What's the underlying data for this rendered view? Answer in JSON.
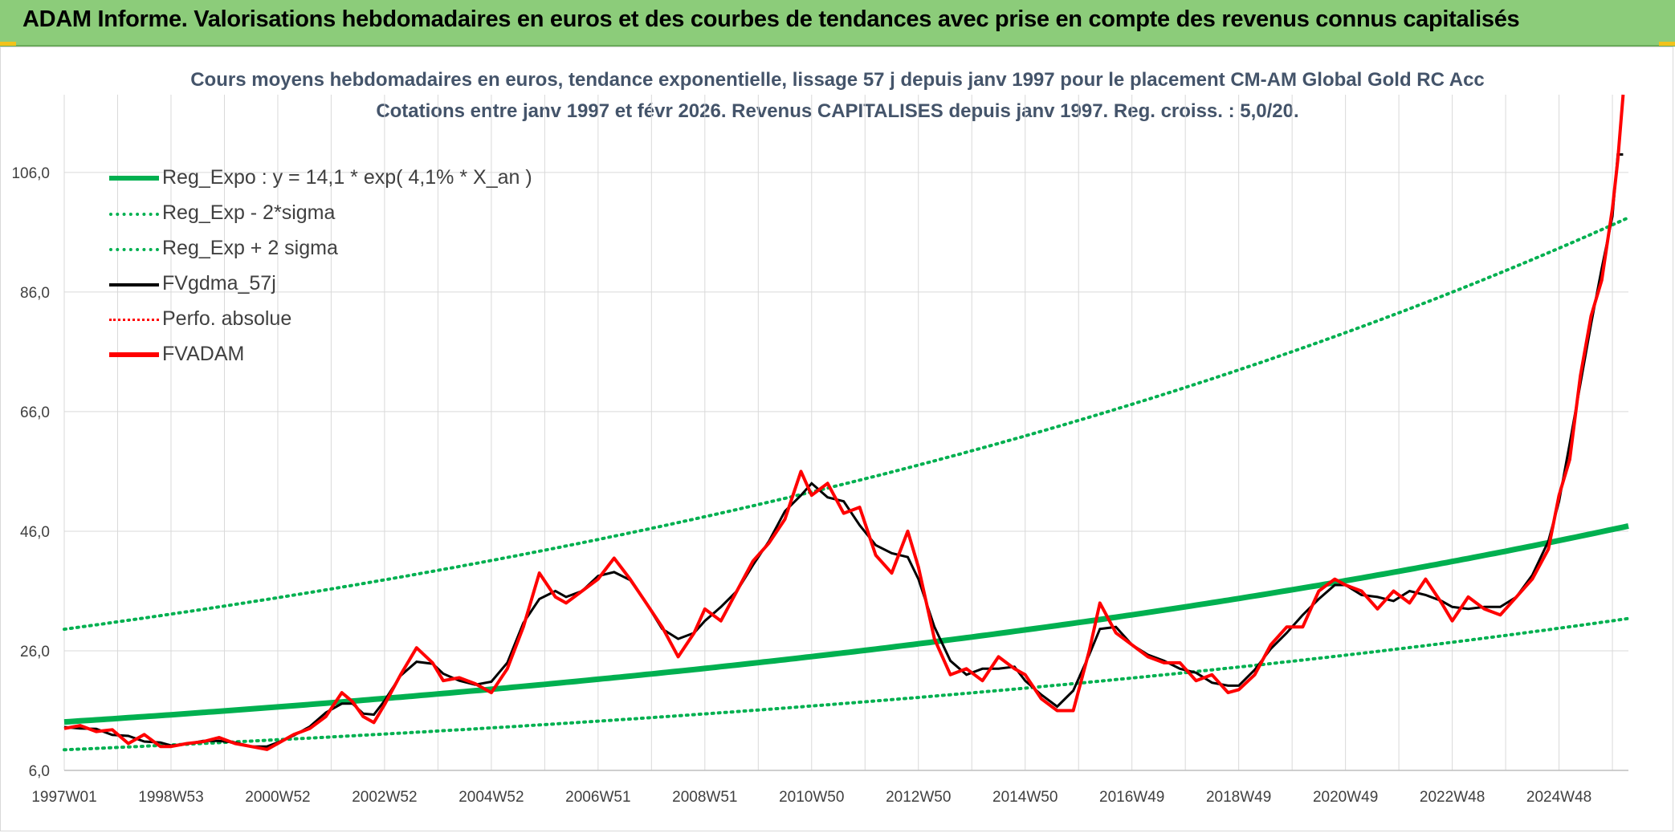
{
  "header": {
    "title": "ADAM Informe. Valorisations hebdomadaires en euros et des courbes de tendances avec prise en compte des revenus connus capitalisés"
  },
  "colors": {
    "banner": "#8ccc7a",
    "corner_accent": "#f2c21b",
    "title_text": "#44546a",
    "regression": "#00b050",
    "smoothed": "#000000",
    "price": "#ff0000",
    "grid": "#d9d9d9"
  },
  "chart_data": {
    "type": "line",
    "title": "Cours moyens hebdomadaires en euros, tendance exponentielle, lissage 57 j depuis janv 1997 pour le placement CM-AM Global Gold RC Acc",
    "subtitle": "Cotations entre janv 1997 et févr 2026. Revenus CAPITALISES depuis janv 1997. Reg. croiss. : 5,0/20.",
    "xlabel": "",
    "ylabel": "",
    "ylim": [
      6.0,
      119.0
    ],
    "xlim": [
      1997.0,
      2026.3
    ],
    "yticks": [
      "6,0",
      "26,0",
      "46,0",
      "66,0",
      "86,0",
      "106,0"
    ],
    "ytick_values": [
      6,
      26,
      46,
      66,
      86,
      106
    ],
    "xticks": [
      "1997W01",
      "1998W53",
      "2000W52",
      "2002W52",
      "2004W52",
      "2006W51",
      "2008W51",
      "2010W50",
      "2012W50",
      "2014W50",
      "2016W49",
      "2018W49",
      "2020W49",
      "2022W48",
      "2024W48"
    ],
    "xtick_years": [
      1997.0,
      1999.0,
      2001.0,
      2003.0,
      2005.0,
      2007.0,
      2009.0,
      2011.0,
      2013.0,
      2015.0,
      2017.0,
      2019.0,
      2021.0,
      2023.0,
      2025.0
    ],
    "grid": true,
    "legend_position": "top-left",
    "regression": {
      "a": 14.1,
      "rate": 0.041,
      "sigma_factor_minus": 0.67,
      "sigma_factor_plus": 2.1
    },
    "series": [
      {
        "name": "Reg_Expo : y = 14,1 * exp( 4,1% *  X_an )",
        "style": "solid-thick",
        "color": "#00b050"
      },
      {
        "name": "Reg_Exp - 2*sigma",
        "style": "dotted",
        "color": "#00b050"
      },
      {
        "name": "Reg_Exp + 2 sigma",
        "style": "dotted",
        "color": "#00b050"
      },
      {
        "name": "FVgdma_57j",
        "style": "solid",
        "color": "#000000"
      },
      {
        "name": "Perfo. absolue",
        "style": "dotted",
        "color": "#ff0000"
      },
      {
        "name": "FVADAM",
        "style": "solid-thick",
        "color": "#ff0000",
        "x": [
          1997.0,
          1997.3,
          1997.6,
          1997.9,
          1998.2,
          1998.5,
          1998.8,
          1999.0,
          1999.3,
          1999.6,
          1999.9,
          2000.2,
          2000.5,
          2000.8,
          2001.0,
          2001.3,
          2001.6,
          2001.9,
          2002.2,
          2002.4,
          2002.6,
          2002.8,
          2003.0,
          2003.3,
          2003.6,
          2003.9,
          2004.1,
          2004.4,
          2004.7,
          2005.0,
          2005.3,
          2005.6,
          2005.9,
          2006.2,
          2006.4,
          2006.7,
          2007.0,
          2007.3,
          2007.6,
          2007.9,
          2008.2,
          2008.5,
          2008.8,
          2009.0,
          2009.3,
          2009.6,
          2009.9,
          2010.2,
          2010.5,
          2010.8,
          2011.0,
          2011.3,
          2011.6,
          2011.9,
          2012.2,
          2012.5,
          2012.8,
          2013.0,
          2013.3,
          2013.6,
          2013.9,
          2014.2,
          2014.5,
          2014.8,
          2015.0,
          2015.3,
          2015.6,
          2015.9,
          2016.2,
          2016.4,
          2016.7,
          2017.0,
          2017.3,
          2017.6,
          2017.9,
          2018.2,
          2018.5,
          2018.8,
          2019.0,
          2019.3,
          2019.6,
          2019.9,
          2020.2,
          2020.5,
          2020.8,
          2021.0,
          2021.3,
          2021.6,
          2021.9,
          2022.2,
          2022.5,
          2022.8,
          2023.0,
          2023.3,
          2023.6,
          2023.9,
          2024.2,
          2024.5,
          2024.8,
          2025.0,
          2025.2,
          2025.4,
          2025.6,
          2025.8,
          2026.0,
          2026.1,
          2026.2
        ],
        "values": [
          13.0,
          13.5,
          12.5,
          12.8,
          10.5,
          12.0,
          10.0,
          10.0,
          10.5,
          10.8,
          11.5,
          10.5,
          10.0,
          9.5,
          10.5,
          12.0,
          13.0,
          15.0,
          19.0,
          17.5,
          15.0,
          14.0,
          17.0,
          22.0,
          26.5,
          24.0,
          21.0,
          21.5,
          20.5,
          19.0,
          23.0,
          30.0,
          39.0,
          35.0,
          34.0,
          36.0,
          38.0,
          41.5,
          38.0,
          34.0,
          30.0,
          25.0,
          29.0,
          33.0,
          31.0,
          36.0,
          41.0,
          44.0,
          48.0,
          56.0,
          52.0,
          54.0,
          49.0,
          50.0,
          42.0,
          39.0,
          46.0,
          40.0,
          28.0,
          22.0,
          23.0,
          21.0,
          25.0,
          23.0,
          22.0,
          18.0,
          16.0,
          16.0,
          26.0,
          34.0,
          29.0,
          27.0,
          25.0,
          24.0,
          24.0,
          21.0,
          22.0,
          19.0,
          19.5,
          22.0,
          27.0,
          30.0,
          30.0,
          36.0,
          38.0,
          37.0,
          36.0,
          33.0,
          36.0,
          34.0,
          38.0,
          34.0,
          31.0,
          35.0,
          33.0,
          32.0,
          35.0,
          38.0,
          43.0,
          52.0,
          58.0,
          72.0,
          82.0,
          88.0,
          100.0,
          108.0,
          119.0
        ]
      }
    ]
  }
}
